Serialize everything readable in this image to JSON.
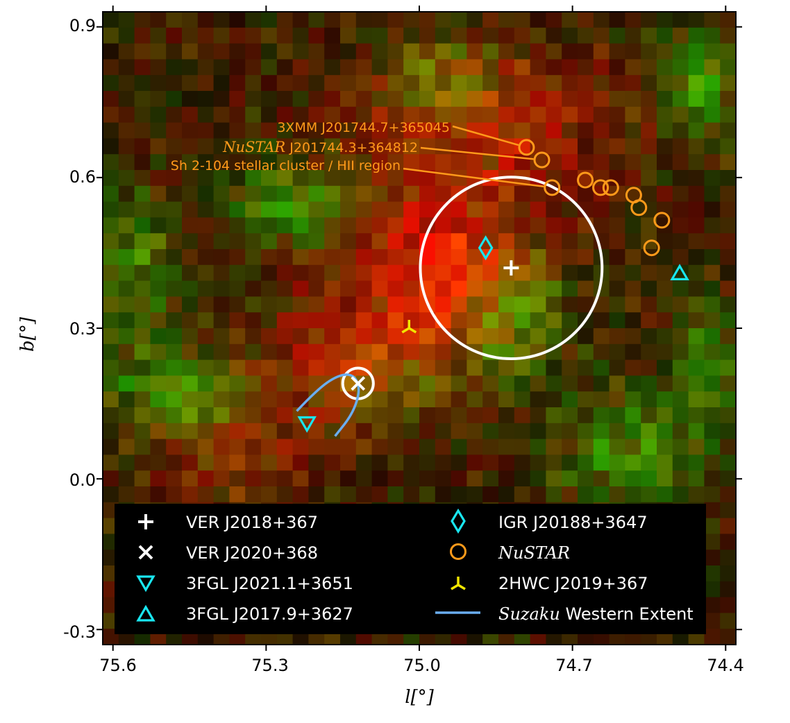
{
  "chart_data": {
    "type": "scatter",
    "title": "",
    "xlabel": "l[°]",
    "ylabel": "b[°]",
    "xlim": [
      75.62,
      74.38
    ],
    "ylim": [
      -0.33,
      0.93
    ],
    "x_ticks": [
      {
        "value": 75.6,
        "label": "75.6"
      },
      {
        "value": 75.3,
        "label": "75.3"
      },
      {
        "value": 75.0,
        "label": "75.0"
      },
      {
        "value": 74.7,
        "label": "74.7"
      },
      {
        "value": 74.4,
        "label": "74.4"
      }
    ],
    "y_ticks": [
      {
        "value": 0.9,
        "label": "0.9"
      },
      {
        "value": 0.6,
        "label": "0.6"
      },
      {
        "value": 0.3,
        "label": "0.3"
      },
      {
        "value": 0.0,
        "label": "0.0"
      },
      {
        "value": -0.3,
        "label": "-0.3"
      }
    ],
    "colors": {
      "white": "#ffffff",
      "cyan": "#19e6f0",
      "orange": "#ff9a1a",
      "yellow": "#f2e600",
      "suzaku": "#6aaef0"
    },
    "series": [
      {
        "name": "VER J2018+367",
        "marker": "plus",
        "color": "#ffffff",
        "points": [
          {
            "l": 74.82,
            "b": 0.42
          }
        ]
      },
      {
        "name": "VER J2020+368",
        "marker": "x",
        "color": "#ffffff",
        "points": [
          {
            "l": 75.12,
            "b": 0.19
          }
        ]
      },
      {
        "name": "3FGL J2021.1+3651",
        "marker": "triangle-down",
        "color": "#19e6f0",
        "points": [
          {
            "l": 75.22,
            "b": 0.11
          }
        ]
      },
      {
        "name": "3FGL J2017.9+3627",
        "marker": "triangle-up",
        "color": "#19e6f0",
        "points": [
          {
            "l": 74.49,
            "b": 0.41
          }
        ]
      },
      {
        "name": "IGR J20188+3647",
        "marker": "diamond",
        "color": "#19e6f0",
        "points": [
          {
            "l": 74.87,
            "b": 0.46
          }
        ]
      },
      {
        "name": "NuSTAR",
        "marker": "circle",
        "color": "#ff9a1a",
        "points": [
          {
            "l": 74.79,
            "b": 0.66
          },
          {
            "l": 74.76,
            "b": 0.635
          },
          {
            "l": 74.74,
            "b": 0.58
          },
          {
            "l": 74.675,
            "b": 0.595
          },
          {
            "l": 74.645,
            "b": 0.58
          },
          {
            "l": 74.625,
            "b": 0.58
          },
          {
            "l": 74.58,
            "b": 0.565
          },
          {
            "l": 74.57,
            "b": 0.54
          },
          {
            "l": 74.525,
            "b": 0.515
          },
          {
            "l": 74.545,
            "b": 0.46
          }
        ]
      },
      {
        "name": "2HWC J2019+367",
        "marker": "tri-down",
        "color": "#f2e600",
        "points": [
          {
            "l": 75.02,
            "b": 0.3
          }
        ]
      },
      {
        "name": "Suzaku Western Extent",
        "marker": "line",
        "color": "#6aaef0",
        "points": [
          {
            "l": 75.24,
            "b": 0.135
          },
          {
            "l": 75.2,
            "b": 0.178
          },
          {
            "l": 75.16,
            "b": 0.206
          },
          {
            "l": 75.13,
            "b": 0.209
          },
          {
            "l": 75.115,
            "b": 0.18
          },
          {
            "l": 75.13,
            "b": 0.13
          },
          {
            "l": 75.165,
            "b": 0.085
          }
        ]
      }
    ],
    "extent_circles": [
      {
        "center_l": 74.82,
        "center_b": 0.42,
        "radius_deg": 0.178,
        "color": "#ffffff"
      },
      {
        "center_l": 75.12,
        "center_b": 0.19,
        "radius_deg": 0.03,
        "color": "#ffffff"
      }
    ],
    "annotations": [
      {
        "text": "3XMM J201744.7+365045",
        "target_l": 74.79,
        "target_b": 0.66
      },
      {
        "text_italic": "NuSTAR",
        "text": " J201744.3+364812",
        "target_l": 74.76,
        "target_b": 0.635
      },
      {
        "text": "Sh 2-104 stellar cluster / HII region",
        "target_l": 74.74,
        "target_b": 0.58
      }
    ],
    "legend": {
      "placement": "lower",
      "entries": [
        {
          "key": "ver2018",
          "text": "VER J2018+367"
        },
        {
          "key": "ver2020",
          "text": "VER J2020+368"
        },
        {
          "key": "fgl2021",
          "text": "3FGL J2021.1+3651"
        },
        {
          "key": "fgl2017",
          "text": "3FGL J2017.9+3627"
        },
        {
          "key": "igr",
          "text": "IGR J20188+3647"
        },
        {
          "key": "nustar",
          "text_italic": "NuSTAR"
        },
        {
          "key": "hwc",
          "text": "2HWC J2019+367"
        },
        {
          "key": "suzaku",
          "text_italic": "Suzaku",
          "text": " Western Extent"
        }
      ]
    }
  }
}
